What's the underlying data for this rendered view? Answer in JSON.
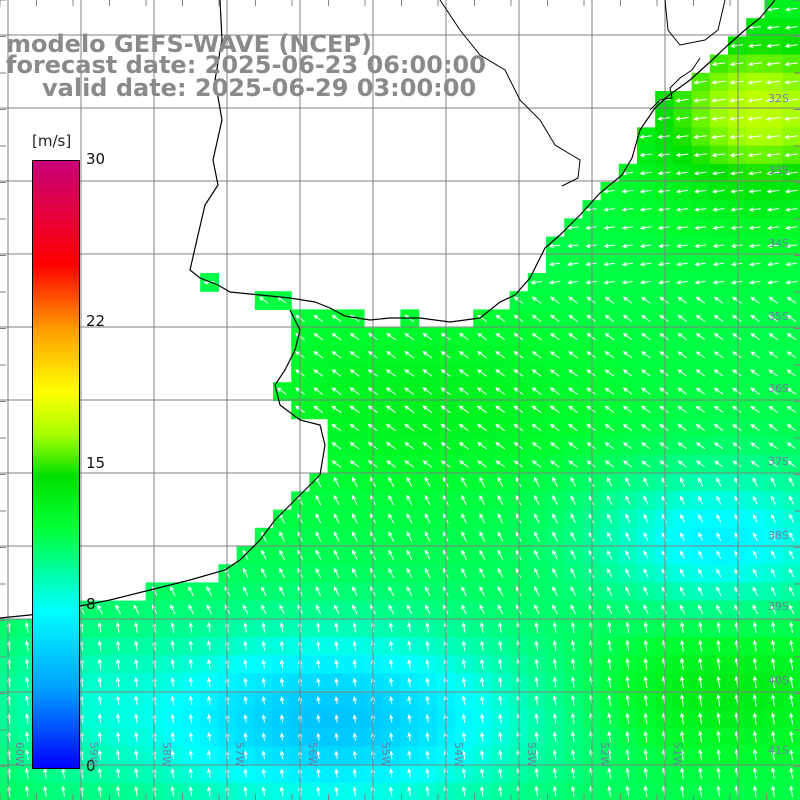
{
  "title": {
    "model": "modelo GEFS-WAVE (NCEP)",
    "forecast": "forecast date: 2025-06-23 06:00:00",
    "valid": "valid date: 2025-06-29 03:00:00"
  },
  "colorbar": {
    "unit": "[m/s]",
    "ticks": [
      {
        "label": "30",
        "value": 30
      },
      {
        "label": "22",
        "value": 22
      },
      {
        "label": "15",
        "value": 15
      },
      {
        "label": "8",
        "value": 8
      },
      {
        "label": "0",
        "value": 0
      }
    ],
    "range": [
      0,
      30
    ]
  },
  "grid": {
    "lat_labels": [
      "32S",
      "33S",
      "34S",
      "35S",
      "36S",
      "37S",
      "38S",
      "39S",
      "40S",
      "41S"
    ],
    "lon_labels": [
      "60W",
      "59W",
      "58W",
      "57W",
      "56W",
      "55W",
      "54W",
      "53W",
      "52W",
      "51W"
    ]
  },
  "colors": {
    "land": "#ffffff",
    "coast": "#000000",
    "grid": "#808080",
    "arrows": "#ffffff",
    "title": "#8a8a8a"
  }
}
